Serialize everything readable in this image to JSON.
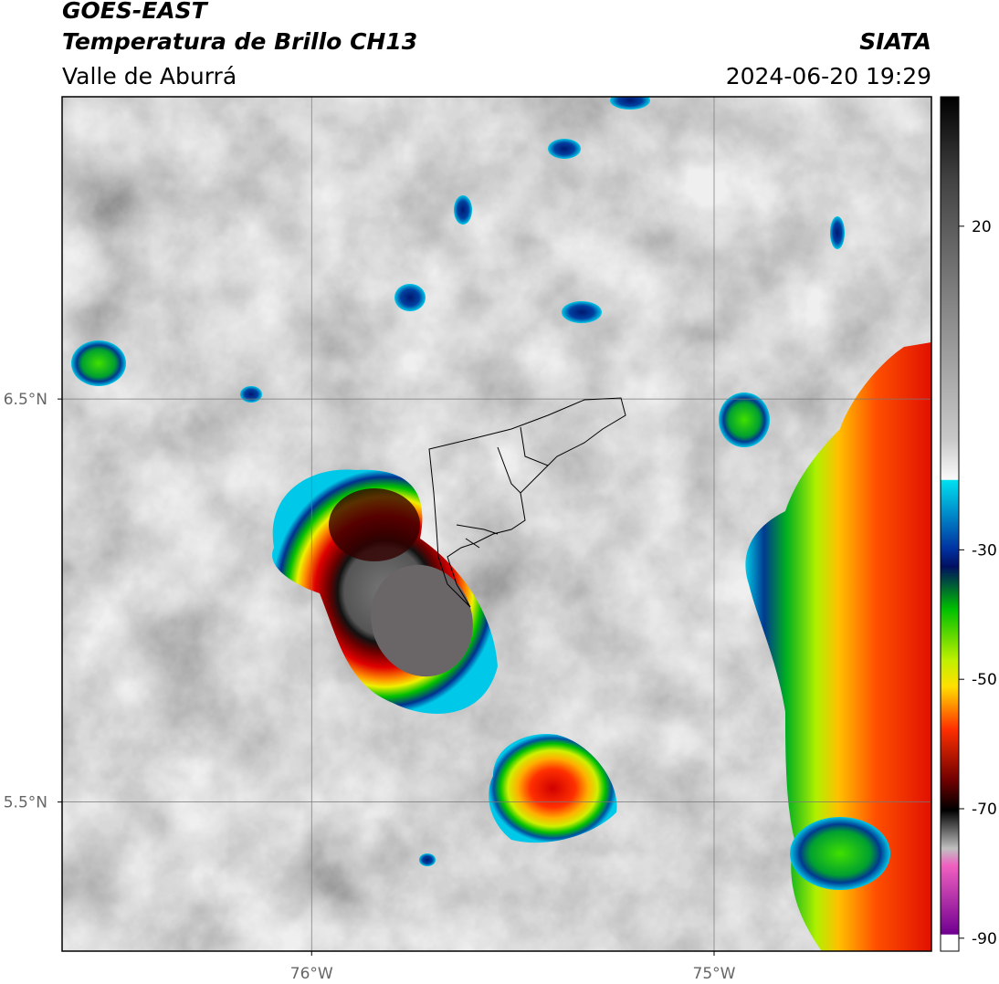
{
  "header": {
    "satellite": "GOES-EAST",
    "product": "Temperatura de Brillo CH13",
    "region": "Valle de Aburrá",
    "source": "SIATA",
    "datetime": "2024-06-20 19:29"
  },
  "map": {
    "lon_range": [
      -76.62,
      -74.46
    ],
    "lat_range": [
      5.13,
      7.25
    ],
    "lon_ticks": [
      {
        "value": -76,
        "label": "76°W"
      },
      {
        "value": -75,
        "label": "75°W"
      }
    ],
    "lat_ticks": [
      {
        "value": 6.5,
        "label": "6.5°N"
      },
      {
        "value": 5.5,
        "label": "5.5°N"
      }
    ],
    "grid": true
  },
  "colorbar": {
    "range": [
      -92,
      40
    ],
    "ticks": [
      20,
      -30,
      -50,
      -70,
      -90
    ]
  }
}
